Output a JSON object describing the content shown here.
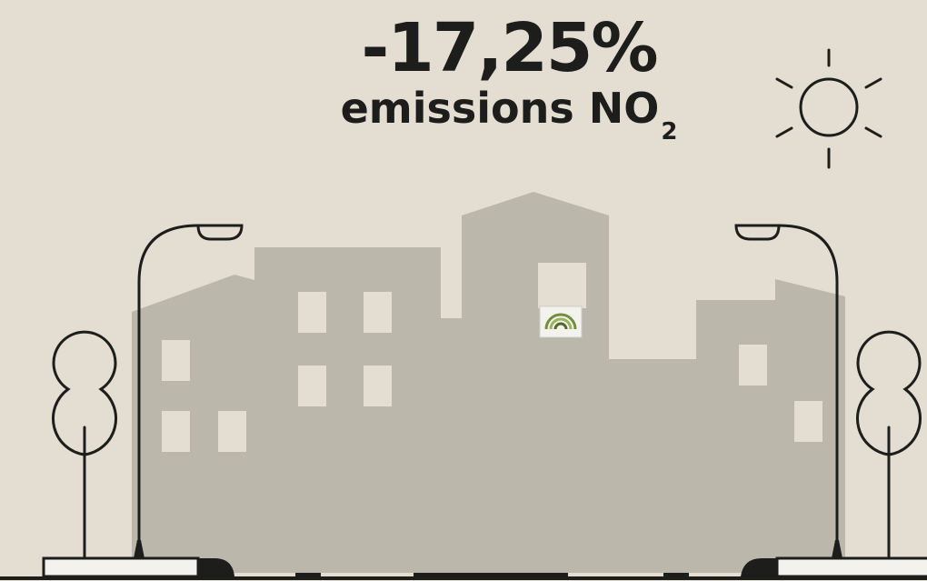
{
  "headline": {
    "value_text": "-17,25%",
    "label": "emissions NO",
    "label_subscript": "2"
  }
}
